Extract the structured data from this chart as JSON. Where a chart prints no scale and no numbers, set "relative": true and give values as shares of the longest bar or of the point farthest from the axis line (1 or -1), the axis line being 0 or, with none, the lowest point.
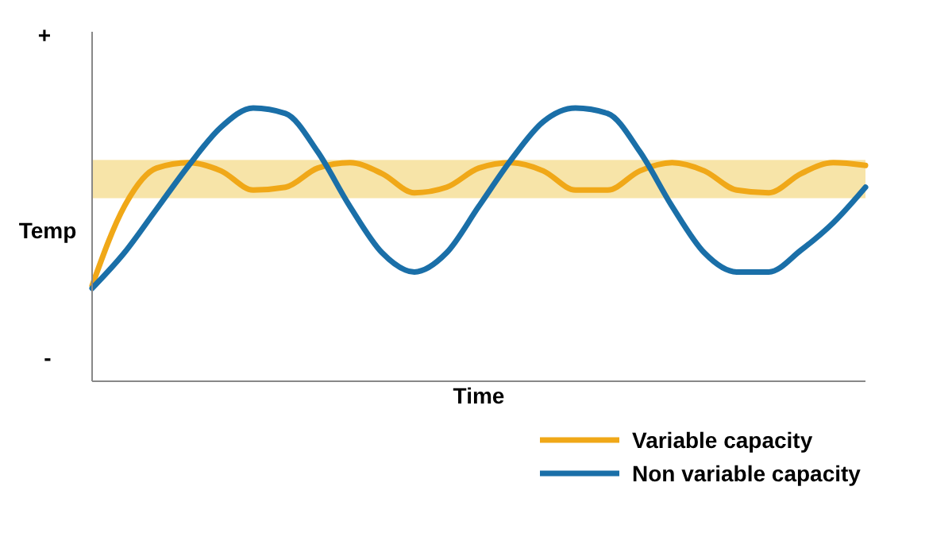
{
  "chart_data": {
    "type": "line",
    "relative": true,
    "xlabel": "Time",
    "ylabel": "Temp",
    "annotations": [
      "+",
      "-"
    ],
    "categories": [
      null,
      null,
      null,
      null,
      null,
      null,
      null,
      null,
      null,
      null,
      null,
      null,
      null,
      null,
      null,
      null,
      null,
      null,
      null,
      null,
      null,
      null,
      null,
      null,
      null
    ],
    "series": [
      {
        "name": "Variable capacity",
        "color": "#f0a818",
        "values": [
          0.35,
          0.64,
          0.78,
          0.8,
          0.77,
          0.7,
          0.71,
          0.78,
          0.8,
          0.76,
          0.69,
          0.71,
          0.78,
          0.8,
          0.77,
          0.7,
          0.7,
          0.77,
          0.8,
          0.77,
          0.7,
          0.69,
          0.76,
          0.8,
          0.79
        ]
      },
      {
        "name": "Non variable capacity",
        "color": "#1a6fa8",
        "values": [
          0.34,
          0.47,
          0.63,
          0.79,
          0.93,
          1.0,
          0.98,
          0.84,
          0.64,
          0.47,
          0.4,
          0.47,
          0.64,
          0.81,
          0.95,
          1.0,
          0.98,
          0.84,
          0.64,
          0.47,
          0.4,
          0.4,
          0.48,
          0.58,
          0.71
        ]
      }
    ],
    "bands": [
      {
        "axis": "y",
        "from": 0.67,
        "to": 0.81,
        "color": "#f7e4a8"
      }
    ],
    "legend": "bottom right",
    "line_style": "solid",
    "marker": "none"
  }
}
